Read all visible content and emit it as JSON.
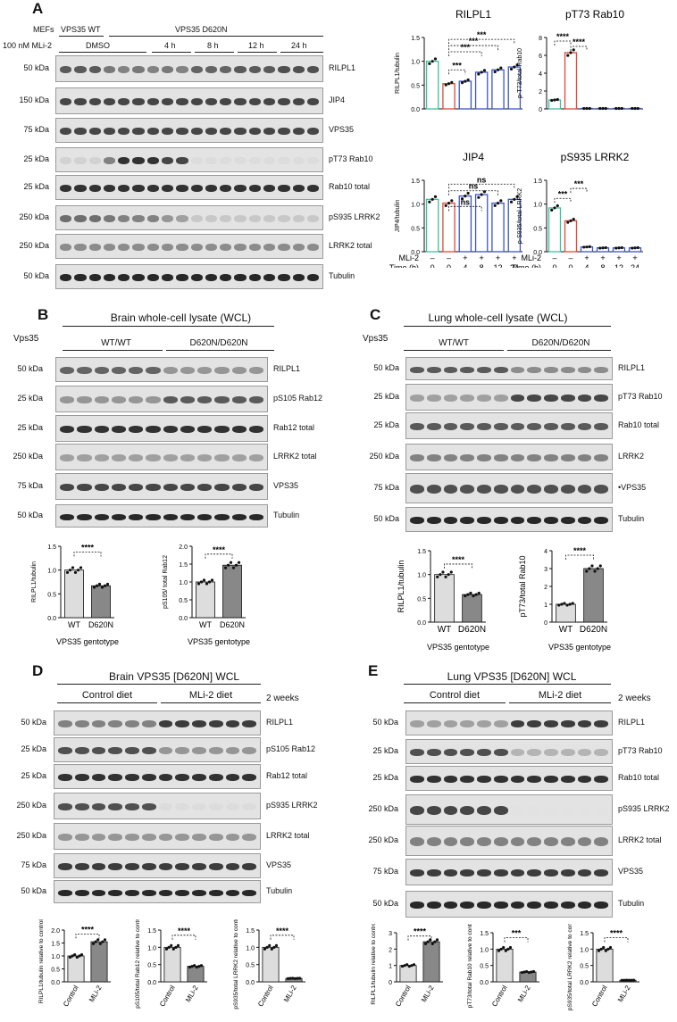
{
  "panels": {
    "A": {
      "label": "A",
      "header": {
        "mefs": "MEFs",
        "mli2": "100 nM MLi-2",
        "wt": "VPS35 WT",
        "mut": "VPS35 D620N",
        "dmso": "DMSO",
        "t4": "4 h",
        "t8": "8 h",
        "t12": "12 h",
        "t24": "24 h"
      },
      "blots": [
        {
          "mw": "50 kDa",
          "label": "RILPL1"
        },
        {
          "mw": "150 kDa",
          "label": "JIP4"
        },
        {
          "mw": "75 kDa",
          "label": "VPS35"
        },
        {
          "mw": "25 kDa",
          "label": "pT73 Rab10"
        },
        {
          "mw": "25 kDa",
          "label": "Rab10 total"
        },
        {
          "mw": "250 kDa",
          "label": "pS935 LRRK2"
        },
        {
          "mw": "250 kDa",
          "label": "LRRK2 total"
        },
        {
          "mw": "50 kDa",
          "label": "Tubulin"
        }
      ],
      "xaxis": {
        "mli2_label": "MLi-2",
        "time_label": "Time (h)",
        "mli2_values": [
          "–",
          "–",
          "+",
          "+",
          "+",
          "+"
        ],
        "time_values": [
          "0",
          "0",
          "4",
          "8",
          "12",
          "24"
        ],
        "wt": "WT",
        "mut": "D620N"
      }
    },
    "B": {
      "label": "B",
      "title": "Brain whole-cell lysate (WCL)",
      "vps35": "Vps35",
      "wt": "WT/WT",
      "mut": "D620N/D620N",
      "blots": [
        {
          "mw": "50 kDa",
          "label": "RILPL1"
        },
        {
          "mw": "25 kDa",
          "label": "pS105 Rab12"
        },
        {
          "mw": "25 kDa",
          "label": "Rab12 total"
        },
        {
          "mw": "250 kDa",
          "label": "LRRK2 total"
        },
        {
          "mw": "75 kDa",
          "label": "VPS35"
        },
        {
          "mw": "50 kDa",
          "label": "Tubulin"
        }
      ],
      "xlabel": "VPS35 gentotype"
    },
    "C": {
      "label": "C",
      "title": "Lung whole-cell lysate (WCL)",
      "vps35": "Vps35",
      "wt": "WT/WT",
      "mut": "D620N/D620N",
      "blots": [
        {
          "mw": "50 kDa",
          "label": "RILPL1"
        },
        {
          "mw": "25 kDa",
          "label": "pT73 Rab10"
        },
        {
          "mw": "25 kDa",
          "label": "Rab10 total"
        },
        {
          "mw": "250 kDa",
          "label": "LRRK2"
        },
        {
          "mw": "75 kDa",
          "label": "•VPS35"
        },
        {
          "mw": "50 kDa",
          "label": "Tubulin"
        }
      ],
      "xlabel": "VPS35 gentotype"
    },
    "D": {
      "label": "D",
      "title": "Brain VPS35 [D620N] WCL",
      "ctrl": "Control diet",
      "mli": "MLi-2 diet",
      "weeks": "2 weeks",
      "blots": [
        {
          "mw": "50 kDa",
          "label": "RILPL1"
        },
        {
          "mw": "25 kDa",
          "label": "pS105 Rab12"
        },
        {
          "mw": "25 kDa",
          "label": "Rab12 total"
        },
        {
          "mw": "250 kDa",
          "label": "pS935 LRRK2"
        },
        {
          "mw": "250 kDa",
          "label": "LRRK2 total"
        },
        {
          "mw": "75 kDa",
          "label": "VPS35"
        },
        {
          "mw": "50 kDa",
          "label": "Tubulin"
        }
      ]
    },
    "E": {
      "label": "E",
      "title": "Lung VPS35 [D620N] WCL",
      "ctrl": "Control diet",
      "mli": "MLi-2 diet",
      "weeks": "2 weeks",
      "blots": [
        {
          "mw": "50 kDa",
          "label": "RILPL1"
        },
        {
          "mw": "25 kDa",
          "label": "pT73 Rab10"
        },
        {
          "mw": "25 kDa",
          "label": "Rab10 total"
        },
        {
          "mw": "250 kDa",
          "label": "pS935 LRRK2"
        },
        {
          "mw": "250 kDa",
          "label": "LRRK2 total"
        },
        {
          "mw": "75 kDa",
          "label": "VPS35"
        },
        {
          "mw": "50 kDa",
          "label": "Tubulin"
        }
      ]
    }
  },
  "colors": {
    "wt": "#3fbf9b",
    "d0": "#e0483a",
    "blue": "#3b55c9",
    "lightbar": "#dddddd",
    "darkbar": "#888888"
  },
  "chart_data": [
    {
      "id": "A-RILPL1",
      "type": "bar",
      "title": "RILPL1",
      "ylabel": "RILPL1/tubulin",
      "categories": [
        "0",
        "0",
        "4",
        "8",
        "12",
        "24"
      ],
      "values": [
        1.0,
        0.53,
        0.58,
        0.77,
        0.82,
        0.88
      ],
      "ylim": [
        0,
        1.5
      ],
      "yticks": [
        "0.0",
        "0.5",
        "1.0",
        "1.5"
      ],
      "sig": [
        "***",
        "***",
        "***",
        "***"
      ]
    },
    {
      "id": "A-pT73",
      "type": "bar",
      "title": "pT73 Rab10",
      "ylabel": "p-T73/total Rab10",
      "categories": [
        "0",
        "0",
        "4",
        "8",
        "12",
        "24"
      ],
      "values": [
        1.0,
        6.3,
        0.05,
        0.05,
        0.05,
        0.05
      ],
      "ylim": [
        0,
        8
      ],
      "yticks": [
        "0",
        "2",
        "4",
        "6",
        "8"
      ],
      "sig": [
        "****",
        "****"
      ]
    },
    {
      "id": "A-JIP4",
      "type": "bar",
      "title": "JIP4",
      "ylabel": "JIP4/tubulin",
      "categories": [
        "0",
        "0",
        "4",
        "8",
        "12",
        "24"
      ],
      "values": [
        1.1,
        1.02,
        1.17,
        1.2,
        1.02,
        1.1
      ],
      "ylim": [
        0,
        1.5
      ],
      "yticks": [
        "0.0",
        "0.5",
        "1.0",
        "1.5"
      ],
      "sig": [
        "ns",
        "ns",
        "ns"
      ]
    },
    {
      "id": "A-pS935",
      "type": "bar",
      "title": "pS935 LRRK2",
      "ylabel": "p-S935/total LRRK2",
      "categories": [
        "0",
        "0",
        "4",
        "8",
        "12",
        "24"
      ],
      "values": [
        0.92,
        0.65,
        0.1,
        0.08,
        0.08,
        0.08
      ],
      "ylim": [
        0,
        1.5
      ],
      "yticks": [
        "0.0",
        "0.5",
        "1.0",
        "1.5"
      ],
      "sig": [
        "***",
        "***"
      ]
    },
    {
      "id": "B-RILPL1",
      "type": "bar",
      "ylabel": "RILPL1/tubulin",
      "categories": [
        "WT",
        "D620N"
      ],
      "values": [
        1.0,
        0.67
      ],
      "ylim": [
        0,
        1.5
      ],
      "yticks": [
        "0.0",
        "0.5",
        "1.0",
        "1.5"
      ],
      "sig": [
        "****"
      ]
    },
    {
      "id": "B-pS105",
      "type": "bar",
      "ylabel": "pS105/ total Rab12",
      "categories": [
        "WT",
        "D620N"
      ],
      "values": [
        1.0,
        1.47
      ],
      "ylim": [
        0,
        2.0
      ],
      "yticks": [
        "0.0",
        "0.5",
        "1.0",
        "1.5",
        "2.0"
      ],
      "sig": [
        "****"
      ]
    },
    {
      "id": "C-RILPL1",
      "type": "bar",
      "ylabel": "RILPL1/tubulin",
      "categories": [
        "WT",
        "D620N"
      ],
      "values": [
        1.0,
        0.58
      ],
      "ylim": [
        0,
        1.5
      ],
      "yticks": [
        "0.0",
        "0.5",
        "1.0",
        "1.5"
      ],
      "sig": [
        "****"
      ]
    },
    {
      "id": "C-pT73",
      "type": "bar",
      "ylabel": "pT73/total Rab10",
      "categories": [
        "WT",
        "D620N"
      ],
      "values": [
        1.0,
        3.0
      ],
      "ylim": [
        0,
        4
      ],
      "yticks": [
        "0",
        "1",
        "2",
        "3",
        "4"
      ],
      "sig": [
        "****"
      ]
    },
    {
      "id": "D-RILPL1",
      "type": "bar",
      "ylabel": "RILPL1/tubulin relative to control diet",
      "categories": [
        "Control",
        "MLi-2"
      ],
      "values": [
        1.0,
        1.55
      ],
      "ylim": [
        0,
        2.0
      ],
      "yticks": [
        "0.0",
        "0.5",
        "1.0",
        "1.5",
        "2.0"
      ],
      "sig": [
        "****"
      ]
    },
    {
      "id": "D-pS105",
      "type": "bar",
      "ylabel": "pS105/total Rab12 relative to control diet",
      "categories": [
        "Control",
        "MLi-2"
      ],
      "values": [
        1.0,
        0.45
      ],
      "ylim": [
        0,
        1.5
      ],
      "yticks": [
        "0.0",
        "0.5",
        "1.0",
        "1.5"
      ],
      "sig": [
        "****"
      ]
    },
    {
      "id": "D-pS935",
      "type": "bar",
      "ylabel": "pS935/total LRRK2 relative to control diet",
      "categories": [
        "Control",
        "MLi-2"
      ],
      "values": [
        1.0,
        0.1
      ],
      "ylim": [
        0,
        1.5
      ],
      "yticks": [
        "0.0",
        "0.5",
        "1.0",
        "1.5"
      ],
      "sig": [
        "****"
      ]
    },
    {
      "id": "E-RILPL1",
      "type": "bar",
      "ylabel": "RILPL1/tubulin relative to control diet",
      "categories": [
        "Control",
        "MLi-2"
      ],
      "values": [
        1.0,
        2.45
      ],
      "ylim": [
        0,
        3
      ],
      "yticks": [
        "0",
        "1",
        "2",
        "3"
      ],
      "sig": [
        "****"
      ]
    },
    {
      "id": "E-pT73",
      "type": "bar",
      "ylabel": "pT73/total Rab10 relative to control diet",
      "categories": [
        "Control",
        "MLi-2"
      ],
      "values": [
        1.0,
        0.3
      ],
      "ylim": [
        0,
        1.5
      ],
      "yticks": [
        "0.0",
        "0.5",
        "1.0",
        "1.5"
      ],
      "sig": [
        "***"
      ]
    },
    {
      "id": "E-pS935",
      "type": "bar",
      "ylabel": "pS935/total LRRK2 relative to control diet",
      "categories": [
        "Control",
        "MLi-2"
      ],
      "values": [
        1.0,
        0.05
      ],
      "ylim": [
        0,
        1.5
      ],
      "yticks": [
        "0.0",
        "0.5",
        "1.0",
        "1.5"
      ],
      "sig": [
        "****"
      ]
    }
  ]
}
